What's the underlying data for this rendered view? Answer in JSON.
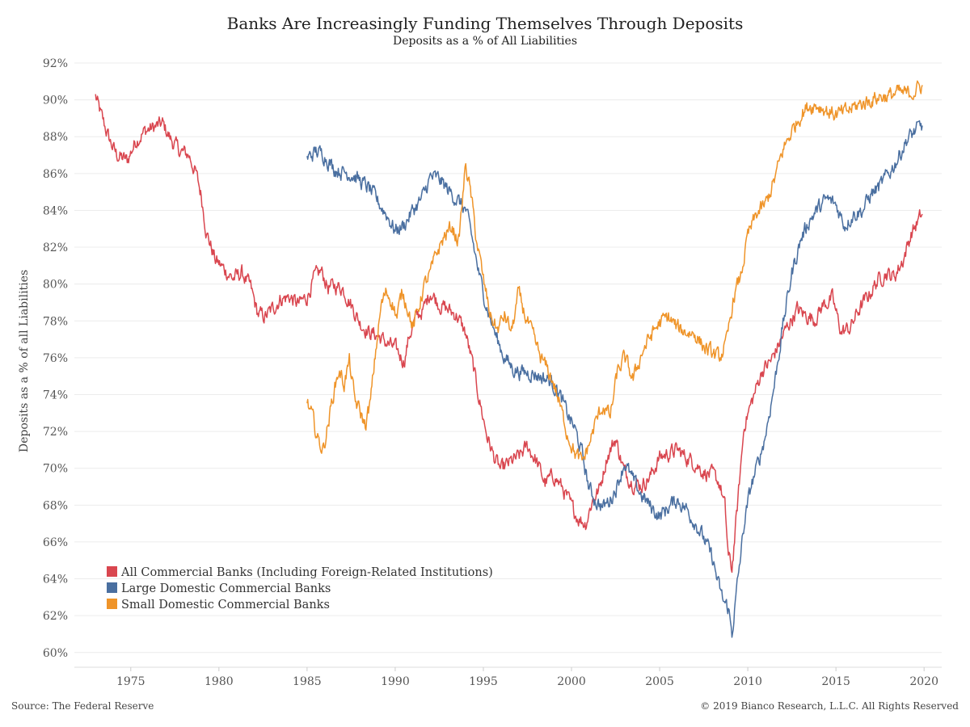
{
  "chart_data": {
    "type": "line",
    "title": "Banks Are Increasingly Funding Themselves Through Deposits",
    "subtitle": "Deposits as a % of All Liabilities",
    "ylabel": "Deposits as a % of all Liabilities",
    "xlabel": "",
    "xlim": [
      1971.8,
      2021.0
    ],
    "ylim": [
      59.2,
      92.0
    ],
    "x_ticks": [
      1975,
      1980,
      1985,
      1990,
      1995,
      2000,
      2005,
      2010,
      2015,
      2020
    ],
    "x_tick_labels": [
      "1975",
      "1980",
      "1985",
      "1990",
      "1995",
      "2000",
      "2005",
      "2010",
      "2015",
      "2020"
    ],
    "y_ticks": [
      60,
      62,
      64,
      66,
      68,
      70,
      72,
      74,
      76,
      78,
      80,
      82,
      84,
      86,
      88,
      90,
      92
    ],
    "y_tick_labels": [
      "60%",
      "62%",
      "64%",
      "66%",
      "68%",
      "70%",
      "72%",
      "74%",
      "76%",
      "78%",
      "80%",
      "82%",
      "84%",
      "86%",
      "88%",
      "90%",
      "92%"
    ],
    "grid": "horizontal",
    "legend_position": "bottom-left",
    "series": [
      {
        "name": "All Commercial Banks (Including Foreign-Related Institutions)",
        "color": "#d9464f",
        "x": [
          1973.0,
          1973.3,
          1973.8,
          1974.2,
          1974.8,
          1975.3,
          1975.8,
          1976.3,
          1976.8,
          1977.3,
          1977.8,
          1978.3,
          1978.7,
          1979.0,
          1979.3,
          1979.8,
          1980.3,
          1980.8,
          1981.3,
          1981.8,
          1982.2,
          1982.6,
          1983.0,
          1983.5,
          1984.0,
          1984.5,
          1985.0,
          1985.4,
          1985.8,
          1986.2,
          1986.6,
          1987.0,
          1987.5,
          1988.0,
          1988.5,
          1989.0,
          1989.5,
          1990.0,
          1990.5,
          1990.8,
          1991.2,
          1991.6,
          1992.0,
          1992.5,
          1993.0,
          1993.5,
          1994.0,
          1994.4,
          1994.8,
          1995.2,
          1995.6,
          1996.0,
          1996.5,
          1997.0,
          1997.5,
          1998.0,
          1998.5,
          1999.0,
          1999.5,
          2000.0,
          2000.4,
          2000.8,
          2001.2,
          2001.6,
          2002.0,
          2002.5,
          2003.0,
          2003.5,
          2004.0,
          2004.5,
          2005.0,
          2005.5,
          2006.0,
          2006.5,
          2007.0,
          2007.5,
          2008.0,
          2008.4,
          2008.7,
          2008.9,
          2009.1,
          2009.4,
          2009.8,
          2010.3,
          2010.8,
          2011.3,
          2011.8,
          2012.3,
          2012.8,
          2013.3,
          2013.8,
          2014.3,
          2014.8,
          2015.3,
          2015.8,
          2016.3,
          2016.8,
          2017.3,
          2017.8,
          2018.3,
          2018.8,
          2019.3,
          2019.9
        ],
        "values": [
          90.2,
          89.2,
          87.8,
          87.0,
          86.7,
          87.8,
          88.3,
          88.5,
          88.7,
          87.8,
          87.2,
          87.0,
          86.0,
          84.8,
          82.8,
          81.3,
          80.8,
          80.3,
          80.6,
          79.8,
          78.4,
          78.2,
          78.6,
          79.2,
          79.3,
          78.9,
          79.3,
          80.3,
          80.7,
          79.8,
          79.9,
          79.8,
          78.9,
          77.9,
          77.4,
          77.2,
          76.8,
          76.5,
          75.8,
          77.2,
          78.2,
          78.6,
          79.6,
          78.9,
          78.6,
          78.3,
          77.3,
          75.6,
          73.6,
          71.8,
          70.6,
          69.9,
          70.3,
          70.6,
          71.2,
          70.4,
          69.2,
          69.6,
          68.9,
          67.9,
          67.3,
          67.0,
          68.3,
          68.9,
          70.6,
          71.6,
          69.8,
          69.2,
          69.1,
          69.6,
          70.6,
          70.8,
          71.0,
          70.6,
          70.3,
          69.8,
          69.6,
          69.2,
          67.9,
          65.2,
          64.5,
          67.8,
          72.4,
          73.8,
          75.3,
          75.8,
          76.8,
          77.8,
          78.6,
          78.3,
          78.1,
          78.9,
          79.2,
          77.4,
          77.6,
          78.6,
          79.3,
          80.1,
          80.6,
          80.4,
          81.3,
          82.8,
          83.8
        ]
      },
      {
        "name": "Large Domestic Commercial Banks",
        "color": "#4a6fa0",
        "x": [
          1985.0,
          1985.5,
          1986.0,
          1986.5,
          1987.0,
          1987.5,
          1988.0,
          1988.5,
          1989.0,
          1989.5,
          1990.0,
          1990.5,
          1991.0,
          1991.5,
          1992.0,
          1992.5,
          1993.0,
          1993.5,
          1994.0,
          1994.4,
          1994.8,
          1995.2,
          1995.7,
          1996.2,
          1996.7,
          1997.2,
          1997.7,
          1998.2,
          1998.7,
          1999.2,
          1999.7,
          2000.2,
          2000.6,
          2001.0,
          2001.4,
          2001.8,
          2002.2,
          2002.6,
          2003.0,
          2003.5,
          2004.0,
          2004.5,
          2005.0,
          2005.5,
          2006.0,
          2006.5,
          2007.0,
          2007.5,
          2008.0,
          2008.3,
          2008.6,
          2008.9,
          2009.1,
          2009.4,
          2009.8,
          2010.2,
          2010.6,
          2011.0,
          2011.5,
          2012.0,
          2012.5,
          2013.0,
          2013.5,
          2014.0,
          2014.5,
          2015.0,
          2015.5,
          2016.0,
          2016.5,
          2017.0,
          2017.5,
          2018.0,
          2018.5,
          2019.0,
          2019.5,
          2019.9
        ],
        "values": [
          86.8,
          87.2,
          87.0,
          86.3,
          86.1,
          86.0,
          85.6,
          85.2,
          84.5,
          83.8,
          82.9,
          83.2,
          84.0,
          84.6,
          85.8,
          85.7,
          85.1,
          84.6,
          84.0,
          82.3,
          80.3,
          78.8,
          77.2,
          76.0,
          75.4,
          75.2,
          75.2,
          75.0,
          74.8,
          74.3,
          73.1,
          72.1,
          70.8,
          68.9,
          68.2,
          67.9,
          68.3,
          69.1,
          70.3,
          69.3,
          68.5,
          67.9,
          67.4,
          67.9,
          68.3,
          67.8,
          67.1,
          66.2,
          65.1,
          63.8,
          62.8,
          62.4,
          61.0,
          63.6,
          67.0,
          69.1,
          70.3,
          71.8,
          74.5,
          77.8,
          80.6,
          82.4,
          83.5,
          84.1,
          84.6,
          84.3,
          83.2,
          83.8,
          84.0,
          84.9,
          85.3,
          86.0,
          86.8,
          87.8,
          88.3,
          88.6
        ]
      },
      {
        "name": "Small Domestic Commercial Banks",
        "color": "#ef9429",
        "x": [
          1985.0,
          1985.3,
          1985.6,
          1985.9,
          1986.2,
          1986.5,
          1986.8,
          1987.1,
          1987.4,
          1987.7,
          1988.0,
          1988.3,
          1988.6,
          1988.9,
          1989.2,
          1989.5,
          1989.8,
          1990.1,
          1990.4,
          1990.7,
          1991.0,
          1991.3,
          1991.6,
          1992.0,
          1992.4,
          1992.8,
          1993.2,
          1993.6,
          1994.0,
          1994.3,
          1994.6,
          1995.0,
          1995.4,
          1995.8,
          1996.2,
          1996.6,
          1997.0,
          1997.4,
          1997.8,
          1998.2,
          1998.6,
          1999.0,
          1999.4,
          1999.8,
          2000.2,
          2000.6,
          2001.0,
          2001.4,
          2001.8,
          2002.2,
          2002.6,
          2003.0,
          2003.5,
          2004.0,
          2004.5,
          2005.0,
          2005.5,
          2006.0,
          2006.5,
          2007.0,
          2007.5,
          2008.0,
          2008.4,
          2008.8,
          2009.2,
          2009.6,
          2010.0,
          2010.5,
          2011.0,
          2011.5,
          2012.0,
          2012.5,
          2013.0,
          2013.5,
          2014.0,
          2014.5,
          2015.0,
          2015.5,
          2016.0,
          2016.5,
          2017.0,
          2017.5,
          2018.0,
          2018.5,
          2019.0,
          2019.5,
          2019.9
        ],
        "values": [
          73.5,
          72.8,
          71.6,
          71.0,
          72.4,
          74.1,
          75.3,
          74.6,
          75.8,
          73.7,
          73.1,
          72.3,
          73.6,
          76.4,
          78.8,
          79.6,
          79.1,
          78.2,
          79.6,
          78.8,
          77.6,
          78.6,
          79.8,
          80.6,
          81.8,
          82.6,
          83.1,
          82.3,
          86.5,
          84.8,
          82.5,
          80.2,
          78.3,
          77.5,
          78.3,
          77.4,
          79.5,
          78.2,
          77.2,
          76.1,
          75.4,
          74.6,
          73.2,
          71.8,
          70.8,
          70.3,
          71.3,
          72.6,
          73.4,
          72.8,
          75.2,
          76.0,
          74.8,
          76.3,
          77.2,
          77.9,
          78.2,
          77.6,
          77.4,
          77.3,
          76.6,
          76.2,
          76.0,
          76.8,
          79.3,
          80.4,
          82.6,
          83.8,
          84.3,
          85.6,
          87.3,
          88.3,
          89.2,
          89.7,
          89.7,
          89.4,
          89.2,
          89.3,
          89.6,
          89.8,
          90.0,
          90.2,
          90.2,
          90.4,
          90.3,
          90.5,
          90.8
        ]
      }
    ]
  },
  "footer": {
    "source": "Source: The Federal Reserve",
    "copyright": "© 2019 Bianco Research, L.L.C. All Rights Reserved"
  }
}
